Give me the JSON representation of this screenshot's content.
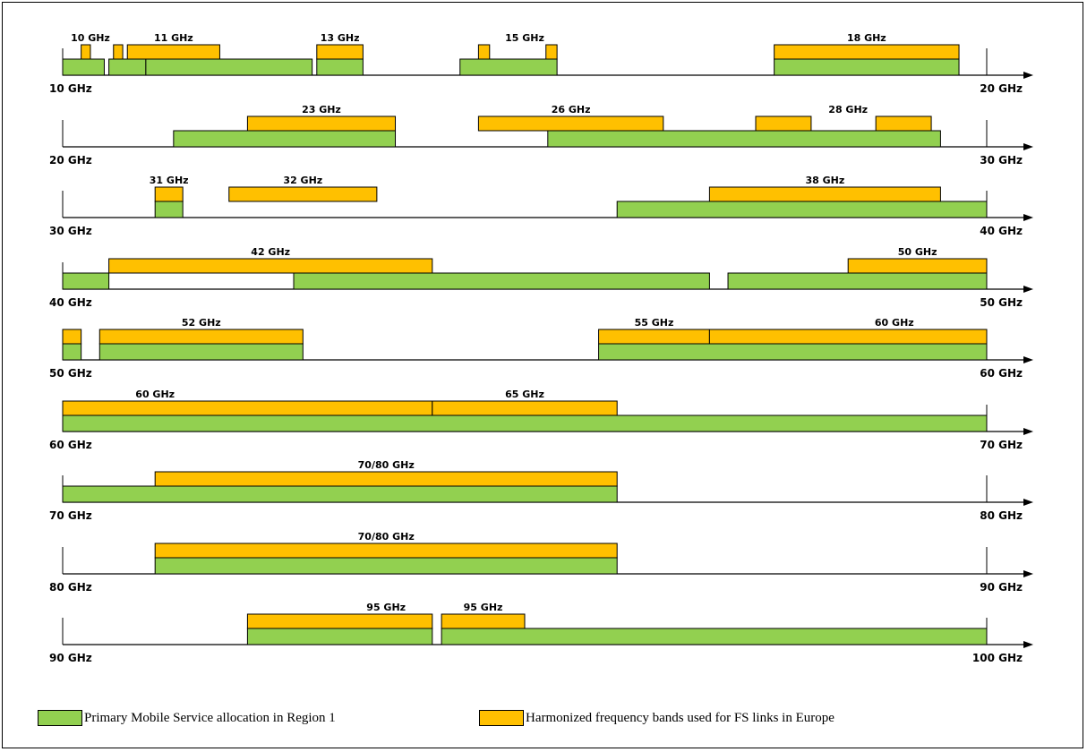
{
  "colors": {
    "mobile": "#92d050",
    "fs": "#ffc000",
    "stroke": "#000000"
  },
  "legend": {
    "mobile_label": "Primary Mobile Service allocation in Region 1",
    "fs_label": "Harmonized frequency bands used for FS links in Europe"
  },
  "chart_data": {
    "type": "band-allocation",
    "unit": "GHz",
    "rows": [
      {
        "start": 10,
        "end": 20,
        "start_label": "10 GHz",
        "end_label": "20 GHz",
        "mobile": [
          [
            10,
            10.45
          ],
          [
            10.5,
            10.9
          ],
          [
            10.9,
            12.7
          ],
          [
            12.75,
            13.25
          ],
          [
            14.3,
            15.35
          ],
          [
            17.7,
            19.7
          ]
        ],
        "fs": [
          [
            10.2,
            10.3
          ],
          [
            10.55,
            10.65
          ],
          [
            10.7,
            11.7
          ],
          [
            12.75,
            13.25
          ],
          [
            14.5,
            14.62
          ],
          [
            15.23,
            15.35
          ],
          [
            17.7,
            19.7
          ]
        ],
        "labels": [
          {
            "f": 10.3,
            "text": "10 GHz"
          },
          {
            "f": 11.2,
            "text": "11 GHz"
          },
          {
            "f": 13.0,
            "text": "13 GHz"
          },
          {
            "f": 15.0,
            "text": "15 GHz"
          },
          {
            "f": 18.7,
            "text": "18 GHz"
          }
        ]
      },
      {
        "start": 20,
        "end": 30,
        "start_label": "20 GHz",
        "end_label": "30 GHz",
        "mobile": [
          [
            21.2,
            23.6
          ],
          [
            25.25,
            29.5
          ]
        ],
        "fs": [
          [
            22.0,
            23.6
          ],
          [
            24.5,
            26.5
          ],
          [
            27.5,
            28.1
          ],
          [
            28.8,
            29.4
          ]
        ],
        "labels": [
          {
            "f": 22.8,
            "text": "23 GHz"
          },
          {
            "f": 25.5,
            "text": "26 GHz"
          },
          {
            "f": 28.5,
            "text": "28 GHz"
          }
        ]
      },
      {
        "start": 30,
        "end": 40,
        "start_label": "30 GHz",
        "end_label": "40 GHz",
        "mobile": [
          [
            31.0,
            31.3
          ],
          [
            36.0,
            40.0
          ]
        ],
        "fs": [
          [
            31.0,
            31.3
          ],
          [
            31.8,
            33.4
          ],
          [
            37.0,
            39.5
          ]
        ],
        "labels": [
          {
            "f": 31.15,
            "text": "31 GHz"
          },
          {
            "f": 32.6,
            "text": "32 GHz"
          },
          {
            "f": 38.25,
            "text": "38 GHz"
          }
        ]
      },
      {
        "start": 40,
        "end": 50,
        "start_label": "40 GHz",
        "end_label": "50 GHz",
        "mobile": [
          [
            40.0,
            40.5
          ],
          [
            42.5,
            47.0
          ],
          [
            47.2,
            50.0
          ]
        ],
        "fs": [
          [
            40.5,
            44.0
          ],
          [
            48.5,
            50.0
          ]
        ],
        "labels": [
          {
            "f": 42.25,
            "text": "42 GHz"
          },
          {
            "f": 49.25,
            "text": "50 GHz"
          }
        ]
      },
      {
        "start": 50,
        "end": 60,
        "start_label": "50 GHz",
        "end_label": "60 GHz",
        "mobile": [
          [
            50.0,
            50.2
          ],
          [
            50.4,
            52.6
          ],
          [
            55.8,
            60.0
          ]
        ],
        "fs": [
          [
            50.0,
            50.2
          ],
          [
            50.4,
            52.6
          ],
          [
            55.8,
            57.0
          ],
          [
            57.0,
            60.0
          ]
        ],
        "labels": [
          {
            "f": 51.5,
            "text": "52 GHz"
          },
          {
            "f": 56.4,
            "text": "55 GHz"
          },
          {
            "f": 59.0,
            "text": "60 GHz"
          }
        ]
      },
      {
        "start": 60,
        "end": 70,
        "start_label": "60 GHz",
        "end_label": "70 GHz",
        "mobile": [
          [
            60.0,
            70.0
          ]
        ],
        "fs": [
          [
            60.0,
            64.0
          ],
          [
            64.0,
            66.0
          ]
        ],
        "labels": [
          {
            "f": 61.0,
            "text": "60 GHz"
          },
          {
            "f": 65.0,
            "text": "65 GHz"
          }
        ]
      },
      {
        "start": 70,
        "end": 80,
        "start_label": "70 GHz",
        "end_label": "80 GHz",
        "mobile": [
          [
            70.0,
            76.0
          ]
        ],
        "fs": [
          [
            71.0,
            76.0
          ]
        ],
        "labels": [
          {
            "f": 73.5,
            "text": "70/80 GHz"
          }
        ]
      },
      {
        "start": 80,
        "end": 90,
        "start_label": "80 GHz",
        "end_label": "90 GHz",
        "mobile": [
          [
            81.0,
            86.0
          ]
        ],
        "fs": [
          [
            81.0,
            86.0
          ]
        ],
        "labels": [
          {
            "f": 83.5,
            "text": "70/80 GHz"
          }
        ]
      },
      {
        "start": 90,
        "end": 100,
        "start_label": "90 GHz",
        "end_label": "100 GHz",
        "mobile": [
          [
            92.0,
            94.0
          ],
          [
            94.1,
            100.0
          ]
        ],
        "fs": [
          [
            92.0,
            94.0
          ],
          [
            94.1,
            95.0
          ]
        ],
        "labels": [
          {
            "f": 93.5,
            "text": "95 GHz"
          },
          {
            "f": 94.55,
            "text": "95 GHz"
          }
        ]
      }
    ]
  }
}
